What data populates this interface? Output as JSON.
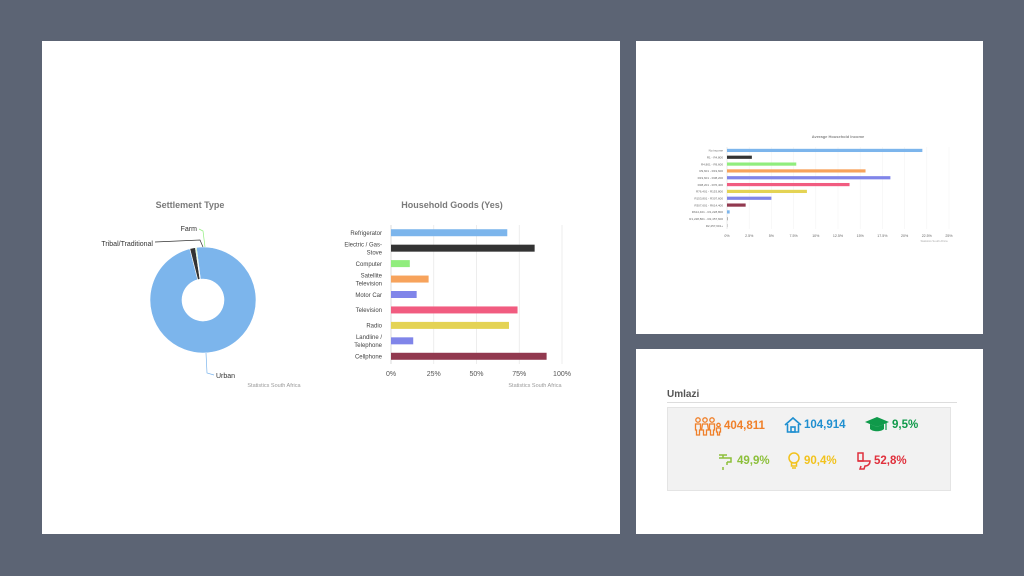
{
  "settlement_chart": {
    "chart_data": {
      "type": "pie",
      "title": "Settlement Type",
      "labels": [
        "Urban",
        "Tribal/Traditional",
        "Farm"
      ],
      "values": [
        98.0,
        1.7,
        0.3
      ],
      "colors": [
        "#7cb5ec",
        "#333333",
        "#90ed7d"
      ],
      "source": "Statistics South Africa"
    }
  },
  "household_goods_chart": {
    "chart_data": {
      "type": "bar",
      "orientation": "horizontal",
      "title": "Household Goods (Yes)",
      "categories": [
        "Refrigerator",
        "Electric / Gas-Stove",
        "Computer",
        "Satellite Television",
        "Motor Car",
        "Television",
        "Radio",
        "Landline / Telephone",
        "Cellphone"
      ],
      "category_lines": [
        [
          "Refrigerator"
        ],
        [
          "Electric / Gas-",
          "Stove"
        ],
        [
          "Computer"
        ],
        [
          "Satellite",
          "Television"
        ],
        [
          "Motor Car"
        ],
        [
          "Television"
        ],
        [
          "Radio"
        ],
        [
          "Landline /",
          "Telephone"
        ],
        [
          "Cellphone"
        ]
      ],
      "values": [
        68,
        84,
        11,
        22,
        15,
        74,
        69,
        13,
        91
      ],
      "colors": [
        "#7cb5ec",
        "#333333",
        "#90ed7d",
        "#f7a35c",
        "#8085e9",
        "#f15c80",
        "#e4d354",
        "#8085e9",
        "#91394f"
      ],
      "xticks": [
        "0%",
        "25%",
        "50%",
        "75%",
        "100%"
      ],
      "xlim": [
        0,
        100
      ],
      "source": "Statistics South Africa"
    }
  },
  "income_chart": {
    "chart_data": {
      "type": "bar",
      "orientation": "horizontal",
      "title": "Average Household Income",
      "categories": [
        "No income",
        "R1 - R4,800",
        "R4,801 - R9,600",
        "R9,601 - R19,600",
        "R19,601 - R38,200",
        "R38,201 - R76,400",
        "R76,401 - R153,800",
        "R153,801 - R307,600",
        "R307,601 - R614,400",
        "R614,401 - R1,228,800",
        "R1,228,801 - R2,457,600",
        "R2,457,601+"
      ],
      "values": [
        22,
        2.8,
        7.8,
        15.6,
        18.4,
        13.8,
        9.0,
        5.0,
        2.1,
        0.3,
        0.1,
        0.05
      ],
      "colors": [
        "#7cb5ec",
        "#333333",
        "#90ed7d",
        "#f7a35c",
        "#8085e9",
        "#f15c80",
        "#e4d354",
        "#8085e9",
        "#91394f",
        "#7cb5ec",
        "#aaaaaa",
        "#aaaaaa"
      ],
      "xticks": [
        "0%",
        "2.5%",
        "5%",
        "7.5%",
        "10%",
        "12.5%",
        "15%",
        "17.5%",
        "20%",
        "22.5%",
        "25%"
      ],
      "xlim": [
        0,
        25
      ],
      "source": "Statistics South Africa"
    }
  },
  "stats": {
    "title": "Umlazi",
    "items": [
      {
        "value": "404,811",
        "color": "#f0802a",
        "icon": "people-icon"
      },
      {
        "value": "104,914",
        "color": "#1f8fd0",
        "icon": "house-icon"
      },
      {
        "value": "9,5%",
        "color": "#0f9a4a",
        "icon": "graduation-cap-icon"
      },
      {
        "value": "49,9%",
        "color": "#8cbf3a",
        "icon": "water-tap-icon"
      },
      {
        "value": "90,4%",
        "color": "#f2c21c",
        "icon": "light-bulb-icon"
      },
      {
        "value": "52,8%",
        "color": "#e0303c",
        "icon": "toilet-icon"
      }
    ]
  }
}
